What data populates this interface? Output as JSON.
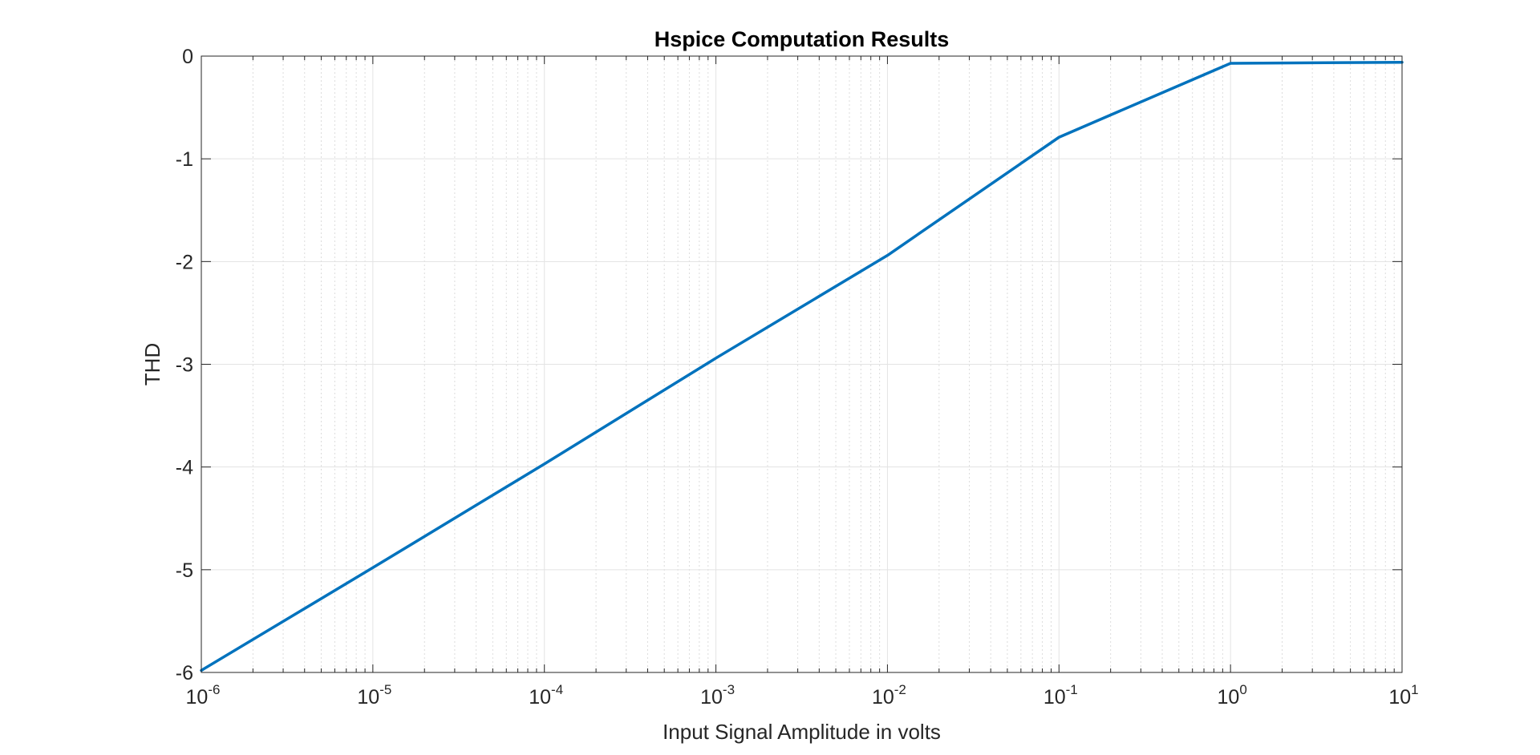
{
  "chart_data": {
    "type": "line",
    "title": "Hspice Computation Results",
    "xlabel": "Input Signal Amplitude in volts",
    "ylabel": "THD",
    "xscale": "log",
    "xlim": [
      1e-06,
      10
    ],
    "ylim": [
      -6,
      0
    ],
    "grid": true,
    "minor_grid": true,
    "legend": "none",
    "x_ticks": [
      {
        "base": "10",
        "exp": "-6"
      },
      {
        "base": "10",
        "exp": "-5"
      },
      {
        "base": "10",
        "exp": "-4"
      },
      {
        "base": "10",
        "exp": "-3"
      },
      {
        "base": "10",
        "exp": "-2"
      },
      {
        "base": "10",
        "exp": "-1"
      },
      {
        "base": "10",
        "exp": "0"
      },
      {
        "base": "10",
        "exp": "1"
      }
    ],
    "y_ticks": [
      "0",
      "-1",
      "-2",
      "-3",
      "-4",
      "-5",
      "-6"
    ],
    "series": [
      {
        "color": "#0072BD",
        "x": [
          1e-06,
          1e-05,
          0.0001,
          0.001,
          0.01,
          0.1,
          1,
          10
        ],
        "y": [
          -5.98,
          -4.98,
          -3.97,
          -2.94,
          -1.94,
          -0.79,
          -0.07,
          -0.06
        ]
      }
    ]
  }
}
